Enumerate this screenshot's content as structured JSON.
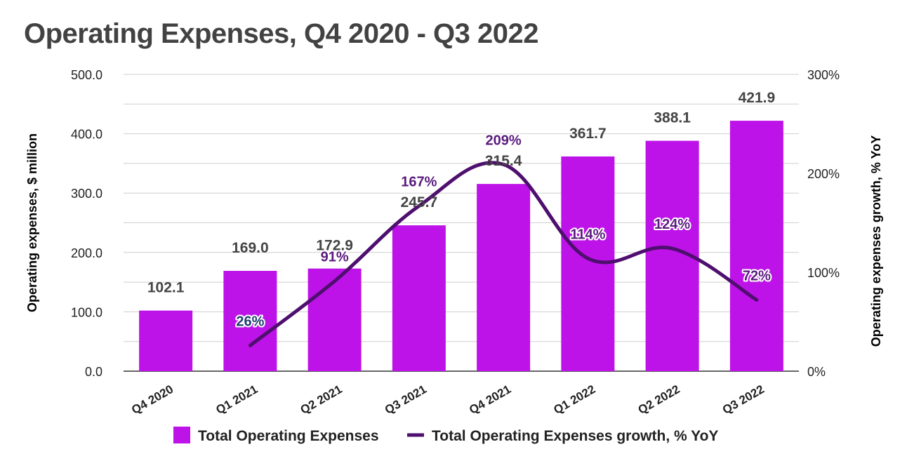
{
  "title": "Operating Expenses, Q4 2020 - Q3 2022",
  "chart_data": {
    "type": "bar",
    "title": "Operating Expenses, Q4 2020 - Q3 2022",
    "categories": [
      "Q4 2020",
      "Q1 2021",
      "Q2 2021",
      "Q3 2021",
      "Q4 2021",
      "Q1 2022",
      "Q2 2022",
      "Q3 2022"
    ],
    "series": [
      {
        "name": "Total Operating Expenses",
        "type": "bar",
        "axis": "left",
        "color": "#bd13e8",
        "values": [
          102.1,
          169.0,
          172.9,
          245.7,
          315.4,
          361.7,
          388.1,
          421.9
        ],
        "labels": [
          "102.1",
          "169.0",
          "172.9",
          "245.7",
          "315.4",
          "361.7",
          "388.1",
          "421.9"
        ]
      },
      {
        "name": "Total Operating Expenses growth, % YoY",
        "type": "line",
        "axis": "right",
        "color": "#4e0f6e",
        "values": [
          null,
          26,
          91,
          167,
          209,
          114,
          124,
          72
        ],
        "labels": [
          "",
          "26%",
          "91%",
          "167%",
          "209%",
          "114%",
          "124%",
          "72%"
        ],
        "label_colors": [
          "",
          "#1f3f70",
          "#5a1b7e",
          "#5a1b7e",
          "#5a1b7e",
          "#5a1b7e",
          "#5a1b7e",
          "#5a1b7e"
        ]
      }
    ],
    "ylabel": "Operating expenses, $ million",
    "y2label": "Operating expenses growth, % YoY",
    "ylim": [
      0,
      500
    ],
    "y2lim": [
      0,
      300
    ],
    "yticks": [
      "0.0",
      "100.0",
      "200.0",
      "300.0",
      "400.0",
      "500.0"
    ],
    "y2ticks": [
      "0%",
      "100%",
      "200%",
      "300%"
    ],
    "grid": true,
    "legend": "bottom-center"
  }
}
